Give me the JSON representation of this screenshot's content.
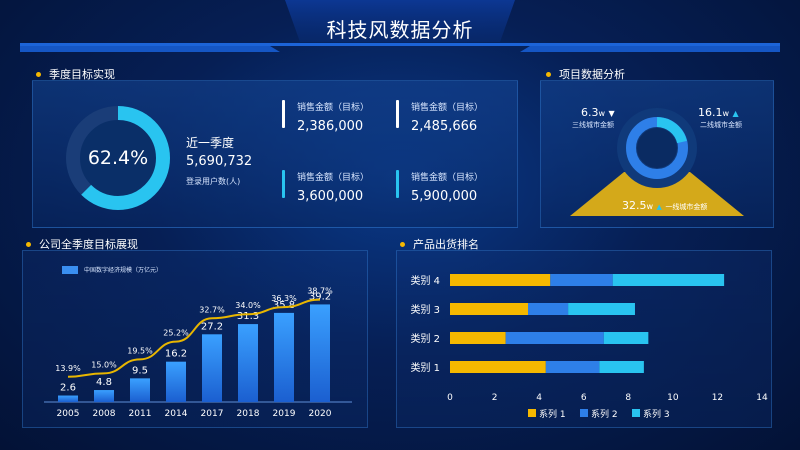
{
  "title": "科技风数据分析",
  "sections": {
    "quarter_target": "季度目标实现",
    "project_data": "项目数据分析",
    "annual_target": "公司全季度目标展现",
    "shipping_rank": "产品出货排名"
  },
  "donut_main": {
    "percent_label": "62.4%",
    "value": 0.624,
    "color": "#29c4f0",
    "track": "#1a3d78"
  },
  "quarter_info": {
    "heading": "近一季度",
    "number": "5,690,732",
    "sublabel": "登录用户数(人)"
  },
  "stats": [
    {
      "label": "销售金额（目标）",
      "value": "2,386,000"
    },
    {
      "label": "销售金额（目标）",
      "value": "2,485,666"
    },
    {
      "label": "销售金额（目标）",
      "value": "3,600,000"
    },
    {
      "label": "销售金额（目标）",
      "value": "5,900,000"
    }
  ],
  "project": {
    "left_value": "6.3",
    "left_unit": "w",
    "left_label": "三线城市金额",
    "right_value": "16.1",
    "right_unit": "w",
    "right_label": "二线城市金额",
    "bottom_value": "32.5",
    "bottom_unit": "w",
    "bottom_label": "一线城市金额",
    "colors": {
      "gold": "#d4a91a",
      "blue": "#2e7fe8",
      "cyan": "#29c4f0"
    }
  },
  "chart_data": [
    {
      "type": "bar",
      "title": "公司全季度目标展现",
      "legend": "中国数字经济规模（万亿元）",
      "categories": [
        "2005",
        "2008",
        "2011",
        "2014",
        "2017",
        "2018",
        "2019",
        "2020"
      ],
      "values": [
        2.6,
        4.8,
        9.5,
        16.2,
        27.2,
        31.3,
        35.8,
        39.2
      ],
      "line_labels": [
        "13.9%",
        "15.0%",
        "19.5%",
        "25.2%",
        "32.7%",
        "34.0%",
        "36.3%",
        "38.7%"
      ],
      "line_values": [
        13.9,
        15.0,
        19.5,
        25.2,
        32.7,
        34.0,
        36.3,
        38.7
      ],
      "ylim": [
        0,
        45
      ],
      "line_ylim": [
        0,
        45
      ]
    },
    {
      "type": "bar",
      "orientation": "horizontal",
      "stacked": true,
      "title": "产品出货排名",
      "categories": [
        "类别 1",
        "类别 2",
        "类别 3",
        "类别 4"
      ],
      "series": [
        {
          "name": "系列 1",
          "color": "#f5b800",
          "values": [
            4.3,
            2.5,
            3.5,
            4.5
          ]
        },
        {
          "name": "系列 2",
          "color": "#2e7fe8",
          "values": [
            2.4,
            4.4,
            1.8,
            2.8
          ]
        },
        {
          "name": "系列 3",
          "color": "#29c4f0",
          "values": [
            2.0,
            2.0,
            3.0,
            5.0
          ]
        }
      ],
      "xticks": [
        "0",
        "2",
        "4",
        "6",
        "8",
        "10",
        "12",
        "14"
      ],
      "xlim": [
        0,
        14
      ]
    }
  ]
}
